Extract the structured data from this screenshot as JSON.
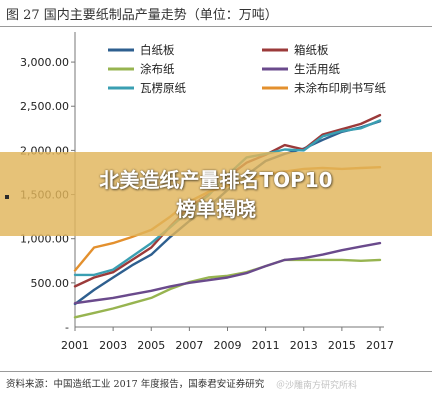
{
  "figure": {
    "title": "图 27 国内主要纸制品产量走势（单位：万吨）",
    "source": "资料来源：中国造纸工业 2017 年度报告，国泰君安证券研究"
  },
  "banner": {
    "line1": "北美造纸产量排名TOP10",
    "line2": "榜单揭晓",
    "color": "#e0b45a"
  },
  "watermark": "＠沙雕南方研究所科",
  "chart_data": {
    "type": "line",
    "x": [
      2001,
      2002,
      2003,
      2004,
      2005,
      2006,
      2007,
      2008,
      2009,
      2010,
      2011,
      2012,
      2013,
      2014,
      2015,
      2016,
      2017
    ],
    "xticks": [
      "2001",
      "2003",
      "2005",
      "2007",
      "2009",
      "2011",
      "2013",
      "2015",
      "2017"
    ],
    "yticks": [
      "500.00",
      "1,000.00",
      "1,500.00",
      "2,000.00",
      "2,500.00",
      "3,000.00"
    ],
    "ylim": [
      0,
      3250
    ],
    "xlim": [
      2001,
      2017
    ],
    "grid": false,
    "legend": "top",
    "series": [
      {
        "name": "白纸板",
        "color": "#2e5f8f",
        "values": [
          260,
          420,
          560,
          700,
          820,
          1020,
          1200,
          1360,
          1550,
          1720,
          1880,
          1960,
          2020,
          2120,
          2210,
          2260,
          2330
        ]
      },
      {
        "name": "箱纸板",
        "color": "#9b3a3a",
        "values": [
          460,
          560,
          620,
          760,
          900,
          1140,
          1360,
          1500,
          1700,
          1860,
          1950,
          2060,
          2010,
          2180,
          2240,
          2300,
          2400
        ]
      },
      {
        "name": "涂布纸",
        "color": "#97b450",
        "values": [
          110,
          160,
          210,
          270,
          330,
          430,
          510,
          560,
          580,
          620,
          690,
          760,
          760,
          760,
          760,
          750,
          760
        ]
      },
      {
        "name": "生活用纸",
        "color": "#6a4a8c",
        "values": [
          270,
          300,
          330,
          370,
          410,
          460,
          500,
          530,
          560,
          610,
          690,
          760,
          780,
          820,
          870,
          910,
          950
        ]
      },
      {
        "name": "瓦楞原纸",
        "color": "#3a9fb2",
        "values": [
          590,
          590,
          650,
          800,
          950,
          1130,
          1320,
          1490,
          1720,
          1920,
          1960,
          2010,
          2000,
          2160,
          2220,
          2250,
          2340
        ]
      },
      {
        "name": "未涂布印刷书写纸",
        "color": "#e3902e",
        "values": [
          640,
          900,
          950,
          1020,
          1100,
          1250,
          1420,
          1530,
          1600,
          1660,
          1730,
          1760,
          1790,
          1800,
          1790,
          1800,
          1810
        ]
      }
    ]
  }
}
